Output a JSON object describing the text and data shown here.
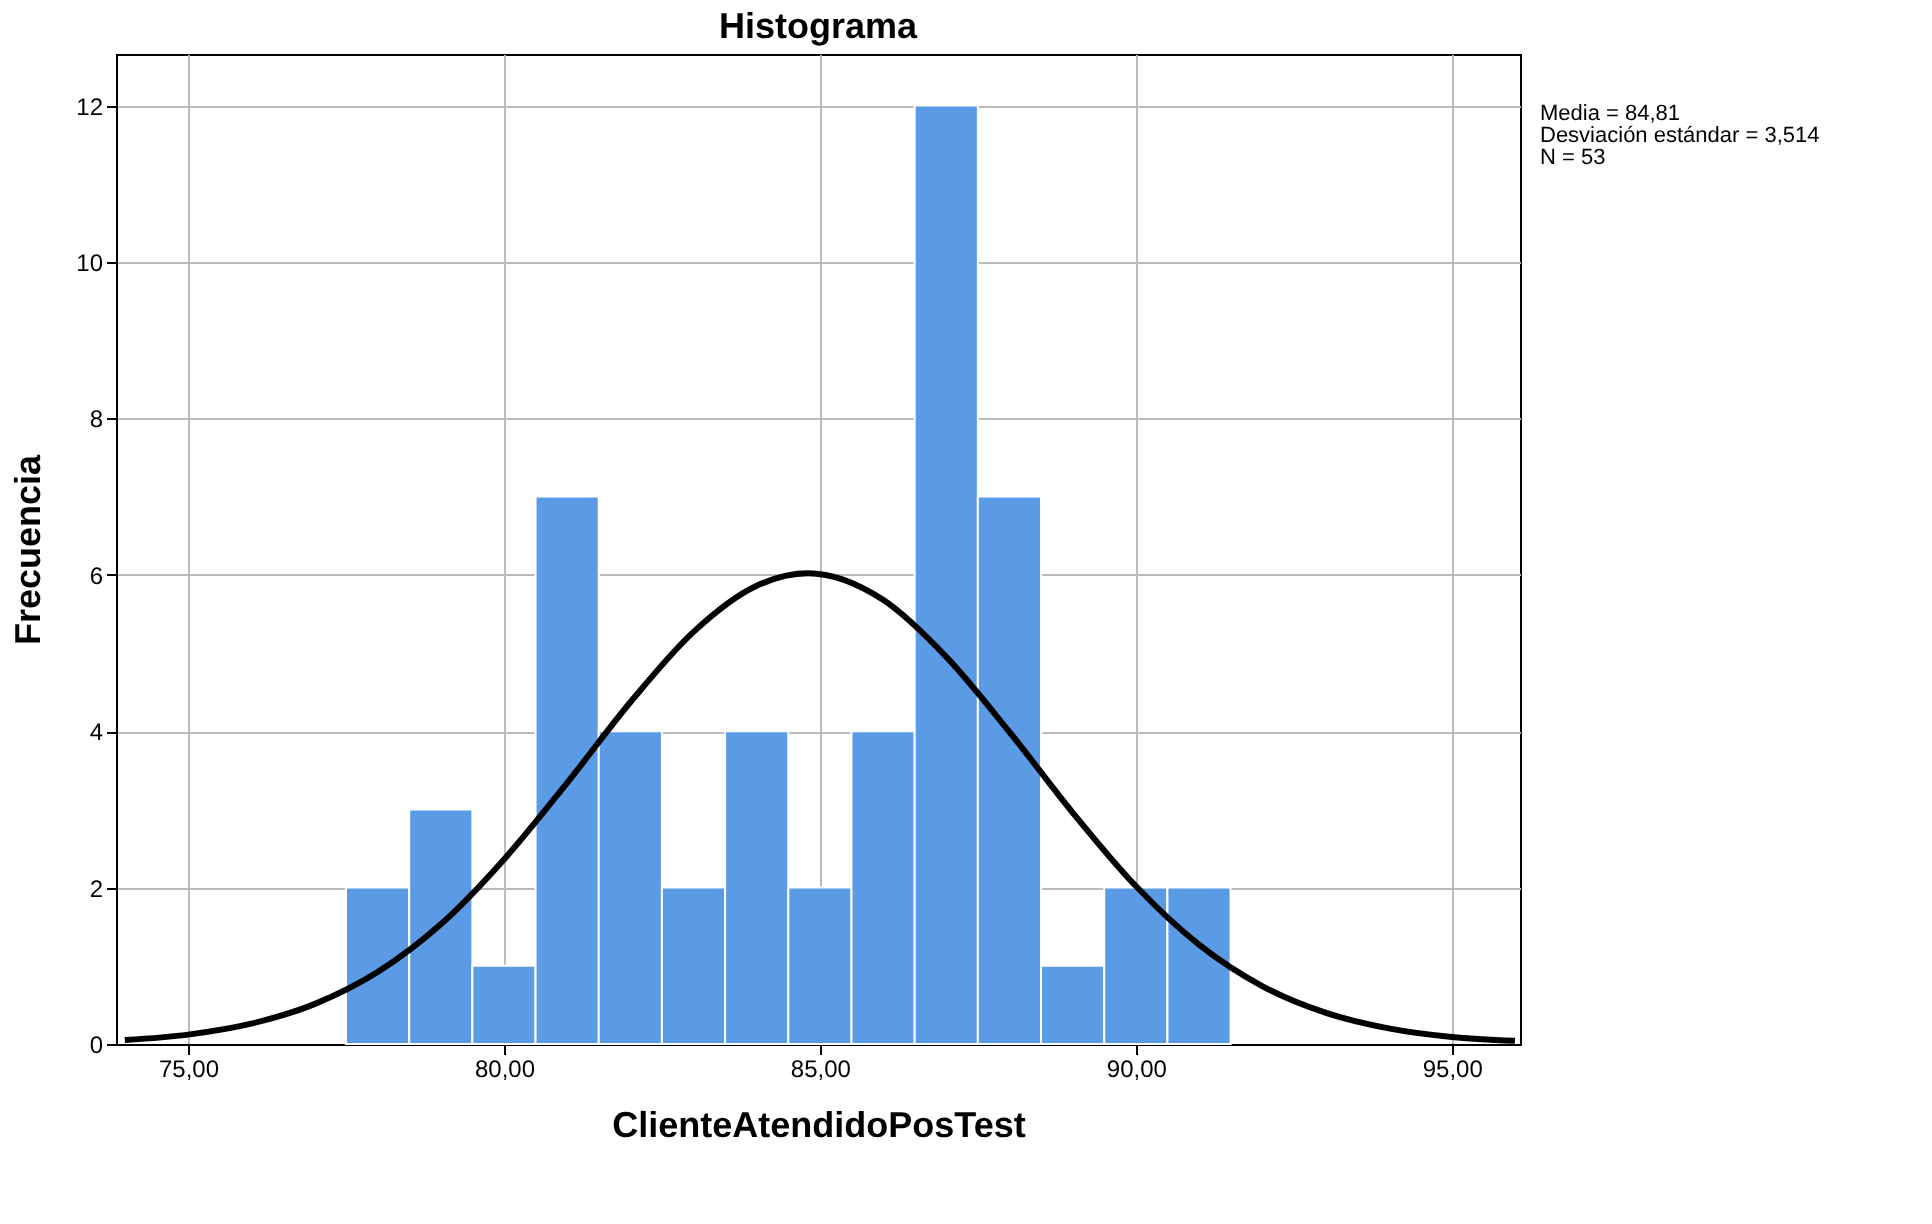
{
  "chart_data": {
    "type": "histogram",
    "title": "Histograma",
    "xlabel": "ClienteAtendidoPosTest",
    "ylabel": "Frecuencia",
    "bins": [
      77.5,
      78.5,
      79.5,
      80.5,
      81.5,
      82.5,
      83.5,
      84.5,
      85.5,
      86.5,
      87.5,
      88.5,
      89.5,
      90.5,
      91.5
    ],
    "values": [
      2,
      3,
      1,
      7,
      4,
      2,
      4,
      2,
      4,
      12,
      7,
      1,
      2,
      2
    ],
    "color": "#5b9be6",
    "series": [
      {
        "type": "line",
        "color": "#000000",
        "x": [
          74,
          75,
          76,
          77,
          78,
          79,
          80,
          81,
          82,
          83,
          84,
          84.81,
          86,
          87,
          88,
          89,
          90,
          91,
          92,
          93,
          94,
          95,
          96
        ],
        "values": [
          0.05,
          0.12,
          0.26,
          0.51,
          0.92,
          1.53,
          2.36,
          3.34,
          4.37,
          5.27,
          5.86,
          6.02,
          5.68,
          4.95,
          3.99,
          2.96,
          2.02,
          1.27,
          0.74,
          0.4,
          0.2,
          0.09,
          0.04
        ]
      }
    ],
    "xlim": [
      73.86,
      96.08
    ],
    "xticks": [
      {
        "value": 75,
        "label": "75,00"
      },
      {
        "value": 80,
        "label": "80,00"
      },
      {
        "value": 85,
        "label": "85,00"
      },
      {
        "value": 90,
        "label": "90,00"
      },
      {
        "value": 95,
        "label": "95,00"
      }
    ],
    "ylim": [
      0,
      12.66
    ],
    "yticks": [
      0,
      2,
      4,
      6,
      8,
      10,
      12
    ],
    "grid": true,
    "annotations": [
      "Media = 84,81",
      "Desviación estándar = 3,514",
      "N = 53"
    ]
  }
}
